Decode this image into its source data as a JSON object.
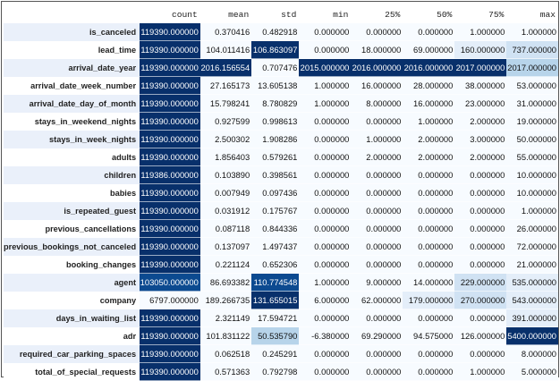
{
  "table": {
    "columns": [
      "count",
      "mean",
      "std",
      "min",
      "25%",
      "50%",
      "75%",
      "max"
    ],
    "rows": [
      {
        "label": "is_canceled",
        "values": [
          "119390.000000",
          "0.370416",
          "0.482918",
          "0.000000",
          "0.000000",
          "0.000000",
          "1.000000",
          "1.000000"
        ],
        "heat": [
          9,
          0,
          0,
          0,
          0,
          0,
          0,
          0
        ]
      },
      {
        "label": "lead_time",
        "values": [
          "119390.000000",
          "104.011416",
          "106.863097",
          "0.000000",
          "18.000000",
          "69.000000",
          "160.000000",
          "737.000000"
        ],
        "heat": [
          9,
          0,
          9,
          0,
          0,
          0,
          1,
          2
        ]
      },
      {
        "label": "arrival_date_year",
        "values": [
          "119390.000000",
          "2016.156554",
          "0.707476",
          "2015.000000",
          "2016.000000",
          "2016.000000",
          "2017.000000",
          "2017.000000"
        ],
        "heat": [
          9,
          9,
          0,
          9,
          9,
          9,
          9,
          3
        ]
      },
      {
        "label": "arrival_date_week_number",
        "values": [
          "119390.000000",
          "27.165173",
          "13.605138",
          "1.000000",
          "16.000000",
          "28.000000",
          "38.000000",
          "53.000000"
        ],
        "heat": [
          9,
          0,
          0,
          0,
          0,
          0,
          0,
          0
        ]
      },
      {
        "label": "arrival_date_day_of_month",
        "values": [
          "119390.000000",
          "15.798241",
          "8.780829",
          "1.000000",
          "8.000000",
          "16.000000",
          "23.000000",
          "31.000000"
        ],
        "heat": [
          9,
          0,
          0,
          0,
          0,
          0,
          0,
          0
        ]
      },
      {
        "label": "stays_in_weekend_nights",
        "values": [
          "119390.000000",
          "0.927599",
          "0.998613",
          "0.000000",
          "0.000000",
          "1.000000",
          "2.000000",
          "19.000000"
        ],
        "heat": [
          9,
          0,
          0,
          0,
          0,
          0,
          0,
          0
        ]
      },
      {
        "label": "stays_in_week_nights",
        "values": [
          "119390.000000",
          "2.500302",
          "1.908286",
          "0.000000",
          "1.000000",
          "2.000000",
          "3.000000",
          "50.000000"
        ],
        "heat": [
          9,
          0,
          0,
          0,
          0,
          0,
          0,
          0
        ]
      },
      {
        "label": "adults",
        "values": [
          "119390.000000",
          "1.856403",
          "0.579261",
          "0.000000",
          "2.000000",
          "2.000000",
          "2.000000",
          "55.000000"
        ],
        "heat": [
          9,
          0,
          0,
          0,
          0,
          0,
          0,
          0
        ]
      },
      {
        "label": "children",
        "values": [
          "119386.000000",
          "0.103890",
          "0.398561",
          "0.000000",
          "0.000000",
          "0.000000",
          "0.000000",
          "10.000000"
        ],
        "heat": [
          9,
          0,
          0,
          0,
          0,
          0,
          0,
          0
        ]
      },
      {
        "label": "babies",
        "values": [
          "119390.000000",
          "0.007949",
          "0.097436",
          "0.000000",
          "0.000000",
          "0.000000",
          "0.000000",
          "10.000000"
        ],
        "heat": [
          9,
          0,
          0,
          0,
          0,
          0,
          0,
          0
        ]
      },
      {
        "label": "is_repeated_guest",
        "values": [
          "119390.000000",
          "0.031912",
          "0.175767",
          "0.000000",
          "0.000000",
          "0.000000",
          "0.000000",
          "1.000000"
        ],
        "heat": [
          9,
          0,
          0,
          0,
          0,
          0,
          0,
          0
        ]
      },
      {
        "label": "previous_cancellations",
        "values": [
          "119390.000000",
          "0.087118",
          "0.844336",
          "0.000000",
          "0.000000",
          "0.000000",
          "0.000000",
          "26.000000"
        ],
        "heat": [
          9,
          0,
          0,
          0,
          0,
          0,
          0,
          0
        ]
      },
      {
        "label": "previous_bookings_not_canceled",
        "values": [
          "119390.000000",
          "0.137097",
          "1.497437",
          "0.000000",
          "0.000000",
          "0.000000",
          "0.000000",
          "72.000000"
        ],
        "heat": [
          9,
          0,
          0,
          0,
          0,
          0,
          0,
          0
        ]
      },
      {
        "label": "booking_changes",
        "values": [
          "119390.000000",
          "0.221124",
          "0.652306",
          "0.000000",
          "0.000000",
          "0.000000",
          "0.000000",
          "21.000000"
        ],
        "heat": [
          9,
          0,
          0,
          0,
          0,
          0,
          0,
          0
        ]
      },
      {
        "label": "agent",
        "values": [
          "103050.000000",
          "86.693382",
          "110.774548",
          "1.000000",
          "9.000000",
          "14.000000",
          "229.000000",
          "535.000000"
        ],
        "heat": [
          8,
          0,
          8,
          0,
          0,
          0,
          2,
          1
        ]
      },
      {
        "label": "company",
        "values": [
          "6797.000000",
          "189.266735",
          "131.655015",
          "6.000000",
          "62.000000",
          "179.000000",
          "270.000000",
          "543.000000"
        ],
        "heat": [
          0,
          0,
          9,
          0,
          0,
          1,
          2,
          1
        ]
      },
      {
        "label": "days_in_waiting_list",
        "values": [
          "119390.000000",
          "2.321149",
          "17.594721",
          "0.000000",
          "0.000000",
          "0.000000",
          "0.000000",
          "391.000000"
        ],
        "heat": [
          9,
          0,
          0,
          0,
          0,
          0,
          0,
          1
        ]
      },
      {
        "label": "adr",
        "values": [
          "119390.000000",
          "101.831122",
          "50.535790",
          "-6.380000",
          "69.290000",
          "94.575000",
          "126.000000",
          "5400.000000"
        ],
        "heat": [
          9,
          0,
          3,
          0,
          0,
          0,
          0,
          9
        ]
      },
      {
        "label": "required_car_parking_spaces",
        "values": [
          "119390.000000",
          "0.062518",
          "0.245291",
          "0.000000",
          "0.000000",
          "0.000000",
          "0.000000",
          "8.000000"
        ],
        "heat": [
          9,
          0,
          0,
          0,
          0,
          0,
          0,
          0
        ]
      },
      {
        "label": "total_of_special_requests",
        "values": [
          "119390.000000",
          "0.571363",
          "0.792798",
          "0.000000",
          "0.000000",
          "0.000000",
          "1.000000",
          "5.000000"
        ],
        "heat": [
          9,
          0,
          0,
          0,
          0,
          0,
          0,
          0
        ]
      }
    ]
  }
}
